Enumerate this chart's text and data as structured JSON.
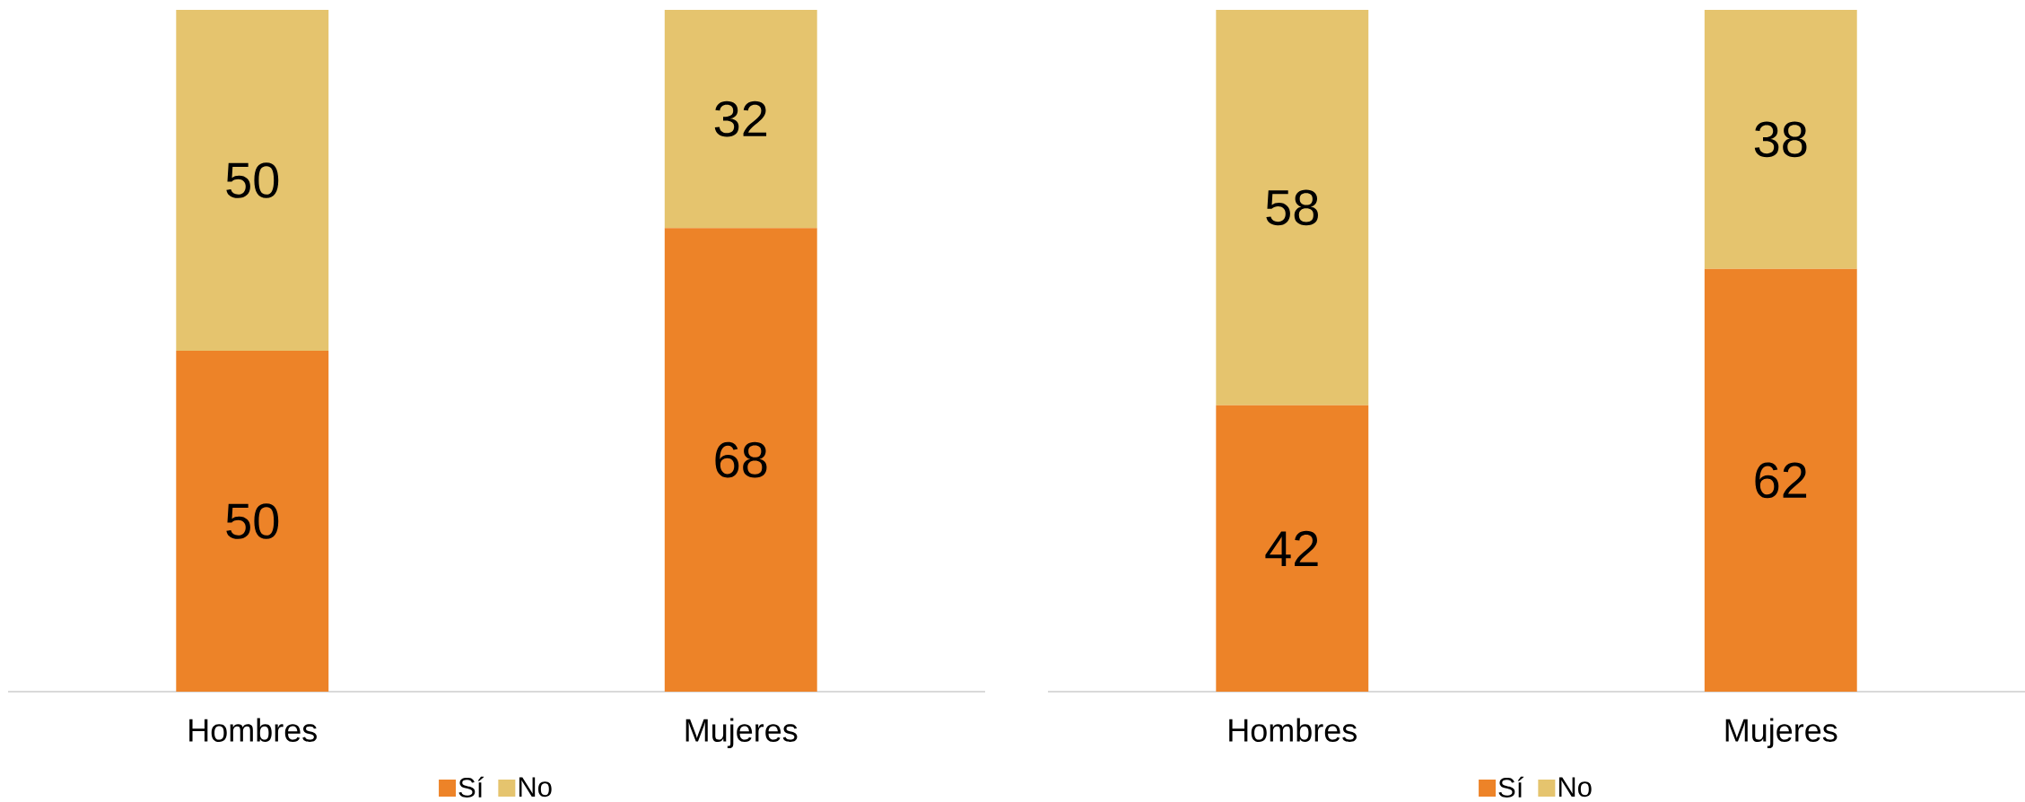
{
  "chart_data": [
    {
      "type": "bar",
      "stacked": true,
      "categories": [
        "Hombres",
        "Mujeres"
      ],
      "series": [
        {
          "name": "Sí",
          "color": "#ED8328",
          "values": [
            50,
            68
          ]
        },
        {
          "name": "No",
          "color": "#E5C46E",
          "values": [
            50,
            32
          ]
        }
      ],
      "data_labels": true,
      "legend": "bottom"
    },
    {
      "type": "bar",
      "stacked": true,
      "categories": [
        "Hombres",
        "Mujeres"
      ],
      "series": [
        {
          "name": "Sí",
          "color": "#ED8328",
          "values": [
            42,
            62
          ]
        },
        {
          "name": "No",
          "color": "#E5C46E",
          "values": [
            58,
            38
          ]
        }
      ],
      "data_labels": true,
      "legend": "bottom"
    }
  ]
}
